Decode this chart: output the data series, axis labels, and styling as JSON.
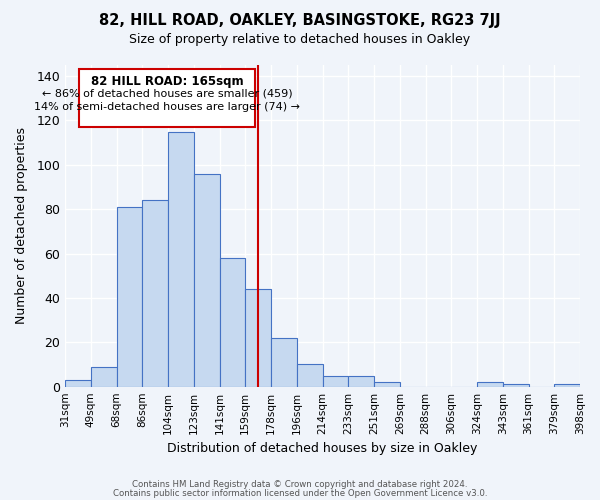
{
  "title": "82, HILL ROAD, OAKLEY, BASINGSTOKE, RG23 7JJ",
  "subtitle": "Size of property relative to detached houses in Oakley",
  "xlabel": "Distribution of detached houses by size in Oakley",
  "ylabel": "Number of detached properties",
  "bin_labels": [
    "31sqm",
    "49sqm",
    "68sqm",
    "86sqm",
    "104sqm",
    "123sqm",
    "141sqm",
    "159sqm",
    "178sqm",
    "196sqm",
    "214sqm",
    "233sqm",
    "251sqm",
    "269sqm",
    "288sqm",
    "306sqm",
    "324sqm",
    "343sqm",
    "361sqm",
    "379sqm",
    "398sqm"
  ],
  "bar_heights": [
    3,
    9,
    81,
    84,
    115,
    96,
    58,
    44,
    22,
    10,
    5,
    5,
    2,
    0,
    0,
    0,
    2,
    1,
    0,
    1
  ],
  "bar_color": "#c6d9f0",
  "bar_edge_color": "#4472c4",
  "vline_x": 7.5,
  "vline_color": "#cc0000",
  "annotation_title": "82 HILL ROAD: 165sqm",
  "annotation_line1": "← 86% of detached houses are smaller (459)",
  "annotation_line2": "14% of semi-detached houses are larger (74) →",
  "annotation_box_color": "#ffffff",
  "annotation_box_edge": "#cc0000",
  "footer1": "Contains HM Land Registry data © Crown copyright and database right 2024.",
  "footer2": "Contains public sector information licensed under the Open Government Licence v3.0.",
  "ylim": [
    0,
    145
  ],
  "yticks": [
    0,
    20,
    40,
    60,
    80,
    100,
    120,
    140
  ],
  "figsize": [
    6.0,
    5.0
  ],
  "dpi": 100,
  "bg_color": "#f0f4fa"
}
